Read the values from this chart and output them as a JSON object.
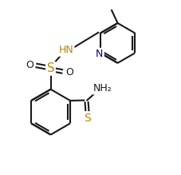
{
  "bg_color": "#ffffff",
  "line_color": "#1a1a1a",
  "S_color": "#b8860b",
  "N_color": "#00008b",
  "bond_lw": 1.5,
  "font_size": 9,
  "figsize": [
    2.27,
    2.19
  ],
  "dpi": 100,
  "xlim": [
    0,
    10
  ],
  "ylim": [
    0,
    9.5
  ]
}
